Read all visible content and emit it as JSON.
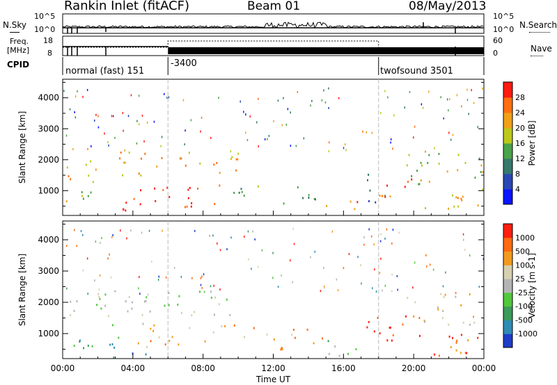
{
  "header": {
    "radar": "Rankin Inlet (fitACF)",
    "beam": "Beam 01",
    "date": "08/May/2013"
  },
  "strips": {
    "nsky_label": "N.Sky",
    "nsearch_label": "N.Search",
    "freq_label_1": "Freq.",
    "freq_label_2": "[MHz]",
    "nave_label": "Nave",
    "cpid_label": "CPID",
    "nsky_ticks": [
      "10^5",
      "10^0"
    ],
    "nsearch_ticks": [
      "10^5",
      "10^0"
    ],
    "freq_ticks": [
      "18",
      "8"
    ],
    "nave_ticks": [
      "60",
      "0"
    ]
  },
  "cpid_segments": [
    {
      "label": "normal (fast) 151",
      "start_h": 0,
      "end_h": 6
    },
    {
      "label": "-3400",
      "start_h": 6,
      "end_h": 18
    },
    {
      "label": "twofsound 3501",
      "start_h": 18,
      "end_h": 24
    }
  ],
  "chart_data": [
    {
      "type": "heatmap",
      "panel": "power",
      "xlabel": "",
      "ylabel": "Slant Range [km]",
      "xlim": [
        0,
        24
      ],
      "ylim": [
        200,
        4600
      ],
      "yticks": [
        "1000",
        "2000",
        "3000",
        "4000"
      ],
      "colorbar_label": "Power [dB]",
      "colorbar_ticks": [
        "4",
        "8",
        "12",
        "16",
        "20",
        "24",
        "28"
      ],
      "colorbar_colors": [
        "#0a14ff",
        "#2a46b4",
        "#36786c",
        "#4aa24a",
        "#bcc81a",
        "#f0a019",
        "#ff6f10",
        "#ff1a10"
      ],
      "echo_bands": [
        {
          "t0": 0.0,
          "t1": 2.2,
          "r0": 1300,
          "r1": 2300,
          "level": 5
        },
        {
          "t0": 0.0,
          "t1": 3.0,
          "r0": 600,
          "r1": 1000,
          "level": 4
        },
        {
          "t0": 2.4,
          "t1": 4.5,
          "r0": 250,
          "r1": 700,
          "level": 7
        },
        {
          "t0": 3.2,
          "t1": 5.8,
          "r0": 1400,
          "r1": 2300,
          "level": 5
        },
        {
          "t0": 4.0,
          "t1": 9.5,
          "r0": 500,
          "r1": 1200,
          "level": 7
        },
        {
          "t0": 6.2,
          "t1": 10.0,
          "r0": 1600,
          "r1": 2300,
          "level": 5
        },
        {
          "t0": 9.5,
          "t1": 12.0,
          "r0": 700,
          "r1": 1200,
          "level": 3
        },
        {
          "t0": 12.0,
          "t1": 14.5,
          "r0": 600,
          "r1": 1300,
          "level": 2
        },
        {
          "t0": 15.0,
          "t1": 17.0,
          "r0": 300,
          "r1": 800,
          "level": 6
        },
        {
          "t0": 17.0,
          "t1": 18.5,
          "r0": 600,
          "r1": 2200,
          "level": 2
        },
        {
          "t0": 18.0,
          "t1": 20.5,
          "r0": 800,
          "r1": 1500,
          "level": 6
        },
        {
          "t0": 19.5,
          "t1": 24.0,
          "r0": 1200,
          "r1": 2300,
          "level": 4
        },
        {
          "t0": 20.5,
          "t1": 24.0,
          "r0": 300,
          "r1": 1100,
          "level": 5
        }
      ]
    },
    {
      "type": "heatmap",
      "panel": "velocity",
      "xlabel": "Time UT",
      "ylabel": "Slant Range [km]",
      "xlim": [
        0,
        24
      ],
      "ylim": [
        200,
        4600
      ],
      "xticks": [
        "00:00",
        "04:00",
        "08:00",
        "12:00",
        "16:00",
        "20:00",
        "00:00"
      ],
      "yticks": [
        "1000",
        "2000",
        "3000",
        "4000"
      ],
      "colorbar_label": "Velocity [m s-1]",
      "colorbar_ticks": [
        "1000",
        "500",
        "100",
        "25",
        "-25",
        "-100",
        "-500",
        "-1000"
      ],
      "colorbar_colors": [
        "#1e3cc8",
        "#2e8cb4",
        "#3c9a5a",
        "#50c83c",
        "#b4b4b4",
        "#d6d0b0",
        "#f29a1e",
        "#ff6a10",
        "#ff1e10"
      ],
      "echo_bands": [
        {
          "t0": 0.0,
          "t1": 5.8,
          "r0": 1300,
          "r1": 2400,
          "level": 4
        },
        {
          "t0": 0.0,
          "t1": 3.5,
          "r0": 500,
          "r1": 1000,
          "level": 2
        },
        {
          "t0": 2.5,
          "t1": 4.8,
          "r0": 200,
          "r1": 700,
          "level": 1
        },
        {
          "t0": 4.0,
          "t1": 11.0,
          "r0": 600,
          "r1": 1300,
          "level": 6
        },
        {
          "t0": 6.0,
          "t1": 10.0,
          "r0": 1600,
          "r1": 2400,
          "level": 4
        },
        {
          "t0": 11.0,
          "t1": 15.0,
          "r0": 500,
          "r1": 1200,
          "level": 6
        },
        {
          "t0": 15.0,
          "t1": 17.0,
          "r0": 300,
          "r1": 800,
          "level": 3
        },
        {
          "t0": 17.0,
          "t1": 20.5,
          "r0": 800,
          "r1": 1600,
          "level": 8
        },
        {
          "t0": 19.5,
          "t1": 24.0,
          "r0": 1300,
          "r1": 2300,
          "level": 5
        },
        {
          "t0": 20.5,
          "t1": 24.0,
          "r0": 300,
          "r1": 1200,
          "level": 7
        }
      ]
    }
  ]
}
